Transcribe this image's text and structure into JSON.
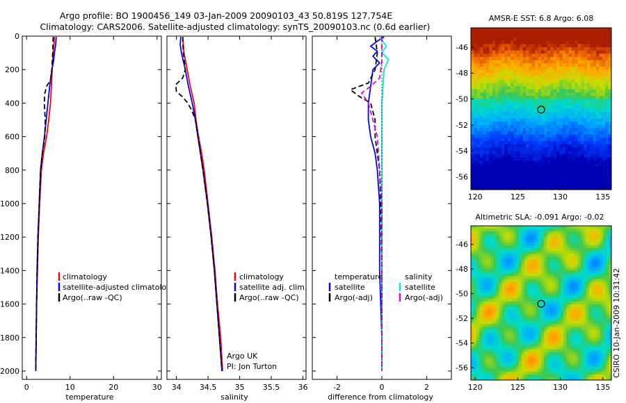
{
  "title_line1": "Argo profile: BO 1900456_149 03-Jan-2009 20090103_43 50.819S 127.754E",
  "title_line2": "Climatology: CARS2006. Satellite-adjusted climatology: synTS_20090103.nc (0.6d earlier)",
  "colors": {
    "climatology": "#ff0000",
    "satellite": "#0000ff",
    "argo": "#000000",
    "satellite_salinity": "#00e5ee",
    "argo_salinity": "#e000e0"
  },
  "chart_data": [
    {
      "type": "line",
      "panel": "temperature",
      "xlabel": "temperature",
      "xlim": [
        -1,
        31
      ],
      "ylim": [
        2050,
        0
      ],
      "xticks": [
        0,
        10,
        20,
        30
      ],
      "yticks": [
        0,
        200,
        400,
        600,
        800,
        1000,
        1200,
        1400,
        1600,
        1800,
        2000
      ],
      "legend": {
        "placement": "lower-right",
        "entries": [
          "climatology",
          "satellite-adjusted climatology",
          "Argo(..raw -QC)"
        ]
      },
      "series": [
        {
          "name": "climatology",
          "color": "#ff0000",
          "dash": "solid",
          "points": [
            [
              6.4,
              5
            ],
            [
              6.3,
              50
            ],
            [
              6.1,
              100
            ],
            [
              6,
              150
            ],
            [
              5.9,
              200
            ],
            [
              5.7,
              300
            ],
            [
              5.5,
              400
            ],
            [
              5.1,
              500
            ],
            [
              4.6,
              600
            ],
            [
              3.9,
              700
            ],
            [
              3.4,
              800
            ],
            [
              3,
              1000
            ],
            [
              2.7,
              1200
            ],
            [
              2.5,
              1400
            ],
            [
              2.3,
              1600
            ],
            [
              2.2,
              1800
            ],
            [
              2.1,
              2000
            ]
          ]
        },
        {
          "name": "satellite-adjusted climatology",
          "color": "#0000ff",
          "dash": "solid",
          "points": [
            [
              6.8,
              5
            ],
            [
              6.7,
              50
            ],
            [
              6.4,
              100
            ],
            [
              6.2,
              150
            ],
            [
              5.8,
              200
            ],
            [
              5.3,
              300
            ],
            [
              4.9,
              400
            ],
            [
              4.5,
              500
            ],
            [
              4.1,
              600
            ],
            [
              3.6,
              700
            ],
            [
              3.2,
              800
            ],
            [
              2.9,
              1000
            ],
            [
              2.6,
              1200
            ],
            [
              2.4,
              1400
            ],
            [
              2.3,
              1600
            ],
            [
              2.2,
              1800
            ],
            [
              2.1,
              2000
            ]
          ]
        },
        {
          "name": "Argo(..raw -QC)",
          "color": "#000000",
          "dash": "dashed",
          "points": [
            [
              6.1,
              5
            ],
            [
              6,
              100
            ],
            [
              5.8,
              200
            ],
            [
              5.5,
              260
            ],
            [
              4.6,
              300
            ],
            [
              4.1,
              350
            ],
            [
              4.1,
              420
            ],
            [
              4.3,
              500
            ],
            [
              4.2,
              600
            ],
            [
              3.6,
              700
            ],
            [
              3.2,
              800
            ],
            [
              2.9,
              1000
            ],
            [
              2.6,
              1200
            ],
            [
              2.4,
              1400
            ],
            [
              2.3,
              1600
            ],
            [
              2.2,
              1800
            ],
            [
              2.1,
              2000
            ]
          ]
        }
      ]
    },
    {
      "type": "line",
      "panel": "salinity",
      "xlabel": "salinity",
      "xlim": [
        33.85,
        36.05
      ],
      "ylim": [
        2050,
        0
      ],
      "xticks": [
        34,
        34.5,
        35,
        35.5,
        36
      ],
      "xticklabels": [
        "34",
        "34.5",
        "35",
        "35.5",
        "36"
      ],
      "yticks": [
        0,
        200,
        400,
        600,
        800,
        1000,
        1200,
        1400,
        1600,
        1800,
        2000
      ],
      "legend": {
        "placement": "lower-right",
        "entries": [
          "climatology",
          "satellite adj. clim.",
          "Argo(..raw -QC)"
        ]
      },
      "annotation": [
        "Argo UK",
        "PI: Jon Turton"
      ],
      "series": [
        {
          "name": "climatology",
          "color": "#ff0000",
          "dash": "solid",
          "points": [
            [
              34.1,
              5
            ],
            [
              34.12,
              100
            ],
            [
              34.17,
              200
            ],
            [
              34.22,
              300
            ],
            [
              34.28,
              400
            ],
            [
              34.31,
              500
            ],
            [
              34.35,
              600
            ],
            [
              34.4,
              700
            ],
            [
              34.44,
              800
            ],
            [
              34.5,
              1000
            ],
            [
              34.56,
              1200
            ],
            [
              34.61,
              1400
            ],
            [
              34.65,
              1600
            ],
            [
              34.7,
              1800
            ],
            [
              34.73,
              2000
            ]
          ]
        },
        {
          "name": "satellite adj. clim.",
          "color": "#0000ff",
          "dash": "solid",
          "points": [
            [
              34.07,
              5
            ],
            [
              34.06,
              50
            ],
            [
              34.08,
              100
            ],
            [
              34.11,
              150
            ],
            [
              34.14,
              200
            ],
            [
              34.19,
              300
            ],
            [
              34.25,
              400
            ],
            [
              34.3,
              500
            ],
            [
              34.34,
              600
            ],
            [
              34.38,
              700
            ],
            [
              34.42,
              800
            ],
            [
              34.49,
              1000
            ],
            [
              34.55,
              1200
            ],
            [
              34.6,
              1400
            ],
            [
              34.64,
              1600
            ],
            [
              34.68,
              1800
            ],
            [
              34.72,
              2000
            ]
          ]
        },
        {
          "name": "Argo(..raw -QC)",
          "color": "#000000",
          "dash": "dashed",
          "points": [
            [
              34.1,
              5
            ],
            [
              34.11,
              100
            ],
            [
              34.14,
              200
            ],
            [
              34.1,
              250
            ],
            [
              33.99,
              290
            ],
            [
              34,
              330
            ],
            [
              34.09,
              360
            ],
            [
              34.18,
              400
            ],
            [
              34.25,
              450
            ],
            [
              34.3,
              500
            ],
            [
              34.34,
              600
            ],
            [
              34.38,
              700
            ],
            [
              34.42,
              800
            ],
            [
              34.49,
              1000
            ],
            [
              34.55,
              1200
            ],
            [
              34.6,
              1400
            ],
            [
              34.64,
              1600
            ],
            [
              34.68,
              1800
            ],
            [
              34.72,
              2000
            ]
          ]
        }
      ]
    },
    {
      "type": "line",
      "panel": "difference",
      "xlabel": "difference from climatology",
      "xlim": [
        -3.1,
        3.1
      ],
      "ylim": [
        2050,
        0
      ],
      "xticks": [
        -2,
        0,
        2
      ],
      "xticklabels": [
        "-2",
        "0",
        "2"
      ],
      "yticks": [
        0,
        200,
        400,
        600,
        800,
        1000,
        1200,
        1400,
        1600,
        1800,
        2000
      ],
      "legend": {
        "placement": "lower-center",
        "groups": [
          {
            "header": "temperature",
            "entries": [
              "satellite",
              "Argo(-adj)"
            ]
          },
          {
            "header": "salinity",
            "entries": [
              "satellite",
              "Argo(-adj)"
            ]
          }
        ]
      },
      "series": [
        {
          "name": "temperature satellite",
          "color": "#0000ff",
          "dash": "solid",
          "points": [
            [
              0.1,
              5
            ],
            [
              -0.2,
              30
            ],
            [
              -0.5,
              60
            ],
            [
              -0.2,
              90
            ],
            [
              -0.4,
              120
            ],
            [
              -0.1,
              160
            ],
            [
              -0.4,
              200
            ],
            [
              -0.5,
              300
            ],
            [
              -0.6,
              400
            ],
            [
              -0.6,
              500
            ],
            [
              -0.5,
              600
            ],
            [
              -0.3,
              700
            ],
            [
              -0.2,
              800
            ],
            [
              -0.1,
              1000
            ],
            [
              -0.1,
              1200
            ],
            [
              -0.1,
              1400
            ],
            [
              0,
              1800
            ],
            [
              0,
              2000
            ]
          ]
        },
        {
          "name": "temperature Argo(-adj)",
          "color": "#000000",
          "dash": "dashed",
          "points": [
            [
              -0.3,
              5
            ],
            [
              -0.2,
              100
            ],
            [
              -0.3,
              200
            ],
            [
              -0.6,
              280
            ],
            [
              -1.4,
              320
            ],
            [
              -1.0,
              360
            ],
            [
              -0.5,
              400
            ],
            [
              -0.3,
              500
            ],
            [
              -0.3,
              600
            ],
            [
              -0.2,
              700
            ],
            [
              -0.1,
              800
            ],
            [
              -0.05,
              1000
            ],
            [
              0,
              1400
            ],
            [
              0,
              2000
            ]
          ]
        },
        {
          "name": "salinity satellite",
          "color": "#00e5ee",
          "dash": "solid",
          "points": [
            [
              -0.1,
              5
            ],
            [
              0.2,
              60
            ],
            [
              0,
              100
            ],
            [
              0.3,
              140
            ],
            [
              0.1,
              200
            ],
            [
              0.05,
              300
            ],
            [
              0,
              400
            ],
            [
              0,
              600
            ],
            [
              0,
              800
            ],
            [
              0,
              1200
            ],
            [
              0,
              1600
            ],
            [
              0,
              2000
            ]
          ]
        },
        {
          "name": "salinity Argo(-adj)",
          "color": "#e000e0",
          "dash": "dashed",
          "points": [
            [
              0,
              5
            ],
            [
              0,
              150
            ],
            [
              -0.1,
              250
            ],
            [
              -0.5,
              300
            ],
            [
              -0.9,
              340
            ],
            [
              -0.6,
              400
            ],
            [
              -0.4,
              500
            ],
            [
              -0.2,
              600
            ],
            [
              -0.1,
              800
            ],
            [
              0,
              1000
            ],
            [
              0,
              2000
            ]
          ]
        },
        {
          "name": "raw",
          "color": "#000000",
          "dash": "dotted",
          "points": [
            [
              0,
              5
            ],
            [
              0,
              600
            ],
            [
              0,
              2000
            ]
          ]
        }
      ]
    },
    {
      "type": "heatmap",
      "panel": "sst-map",
      "title": "AMSR-E SST: 6.8 Argo: 6.08",
      "xlim": [
        119.5,
        136
      ],
      "ylim": [
        -57,
        -44.5
      ],
      "xticks": [
        120,
        125,
        130,
        135
      ],
      "yticks": [
        -46,
        -48,
        -50,
        -52,
        -54,
        -56
      ],
      "marker": [
        127.754,
        -50.819
      ]
    },
    {
      "type": "heatmap",
      "panel": "sla-map",
      "title": "Altimetric SLA: -0.091 Argo: -0.02",
      "xlim": [
        119.5,
        136
      ],
      "ylim": [
        -57,
        -44.5
      ],
      "xticks": [
        120,
        125,
        130,
        135
      ],
      "yticks": [
        -46,
        -48,
        -50,
        -52,
        -54,
        -56
      ],
      "marker": [
        127.754,
        -50.819
      ]
    }
  ],
  "side_label": "CSIRO 10-Jan-2009 10:31:42"
}
